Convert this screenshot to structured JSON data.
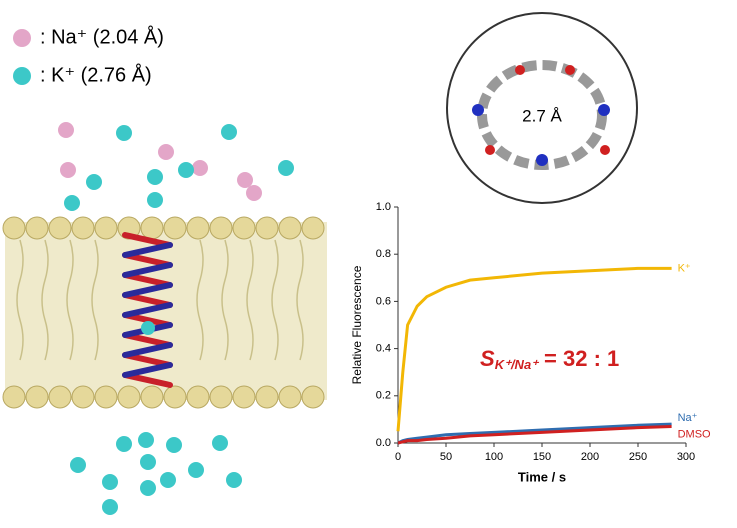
{
  "legend_items": [
    {
      "label": ": Na⁺ (2.04 Å)",
      "color": "#e3a6c8"
    },
    {
      "label": ": K⁺    (2.76 Å)",
      "color": "#3cc8c8"
    }
  ],
  "inset_label": "2.7 Å",
  "chart_data": {
    "type": "line",
    "x_label": "Time / s",
    "y_label": "Relative Fluorescence",
    "x": [
      0,
      5,
      10,
      20,
      30,
      50,
      75,
      100,
      150,
      200,
      250,
      285
    ],
    "series": [
      {
        "name": "K⁺",
        "color": "#f2b705",
        "values": [
          0.05,
          0.3,
          0.5,
          0.58,
          0.62,
          0.66,
          0.69,
          0.7,
          0.72,
          0.73,
          0.74,
          0.74
        ]
      },
      {
        "name": "Na⁺",
        "color": "#2f6db0",
        "values": [
          0,
          0.01,
          0.015,
          0.02,
          0.025,
          0.035,
          0.04,
          0.045,
          0.055,
          0.065,
          0.075,
          0.08
        ]
      },
      {
        "name": "DMSO",
        "color": "#d02020",
        "values": [
          0,
          0.005,
          0.01,
          0.01,
          0.015,
          0.02,
          0.03,
          0.035,
          0.045,
          0.055,
          0.065,
          0.07
        ]
      }
    ],
    "xlim": [
      0,
      300
    ],
    "xticks": [
      0,
      50,
      100,
      150,
      200,
      250,
      300
    ],
    "ylim": [
      0,
      1
    ],
    "yticks": [
      {
        "value": 0,
        "label": "0.0"
      },
      0.2,
      0.4,
      0.6,
      0.8,
      {
        "value": 1,
        "label": "1.0"
      }
    ],
    "annotation": {
      "symbol": "S",
      "subscript": "K⁺/Na⁺",
      "text": "= 32 : 1",
      "color": "#d02020"
    }
  }
}
